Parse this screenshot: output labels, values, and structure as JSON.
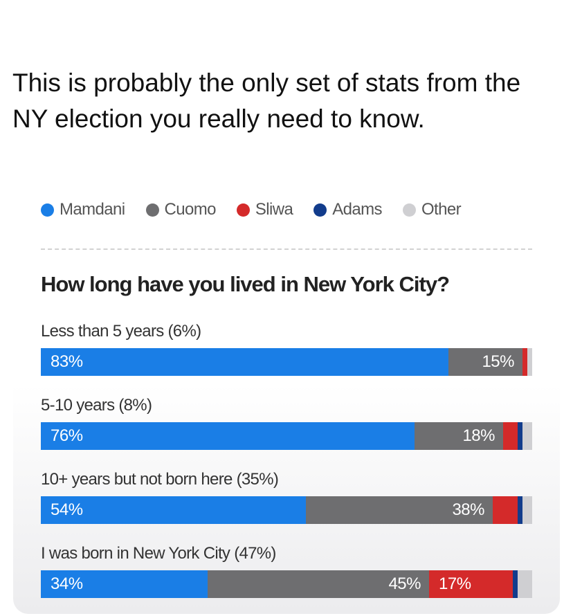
{
  "post": {
    "text": "This is probably the only set of stats from the NY election you really need to know."
  },
  "chart_data": {
    "type": "bar",
    "orientation": "horizontal",
    "stacked": true,
    "normalized": true,
    "title": "How long have you lived in New York City?",
    "legend_position": "top",
    "legend": [
      {
        "name": "Mamdani",
        "color": "#1a7ee6"
      },
      {
        "name": "Cuomo",
        "color": "#6e6e70"
      },
      {
        "name": "Sliwa",
        "color": "#d42a2a"
      },
      {
        "name": "Adams",
        "color": "#123c8c"
      },
      {
        "name": "Other",
        "color": "#cfcfd2"
      }
    ],
    "categories": [
      "Less than 5 years (6%)",
      "5-10 years (8%)",
      "10+ years but not born here (35%)",
      "I was born in New York City (47%)"
    ],
    "series": [
      {
        "name": "Mamdani",
        "color": "#1a7ee6",
        "values": [
          83,
          76,
          54,
          34
        ],
        "labels": [
          "83%",
          "76%",
          "54%",
          "34%"
        ]
      },
      {
        "name": "Cuomo",
        "color": "#6e6e70",
        "values": [
          15,
          18,
          38,
          45
        ],
        "labels": [
          "15%",
          "18%",
          "38%",
          "45%"
        ]
      },
      {
        "name": "Sliwa",
        "color": "#d42a2a",
        "values": [
          1,
          3,
          5,
          17
        ],
        "labels": [
          "",
          "",
          "",
          "17%"
        ]
      },
      {
        "name": "Adams",
        "color": "#123c8c",
        "values": [
          0,
          1,
          1,
          1
        ],
        "labels": [
          "",
          "",
          "",
          ""
        ]
      },
      {
        "name": "Other",
        "color": "#cfcfd2",
        "values": [
          1,
          2,
          2,
          3
        ],
        "labels": [
          "",
          "",
          "",
          ""
        ]
      }
    ],
    "xlim": [
      0,
      100
    ]
  }
}
